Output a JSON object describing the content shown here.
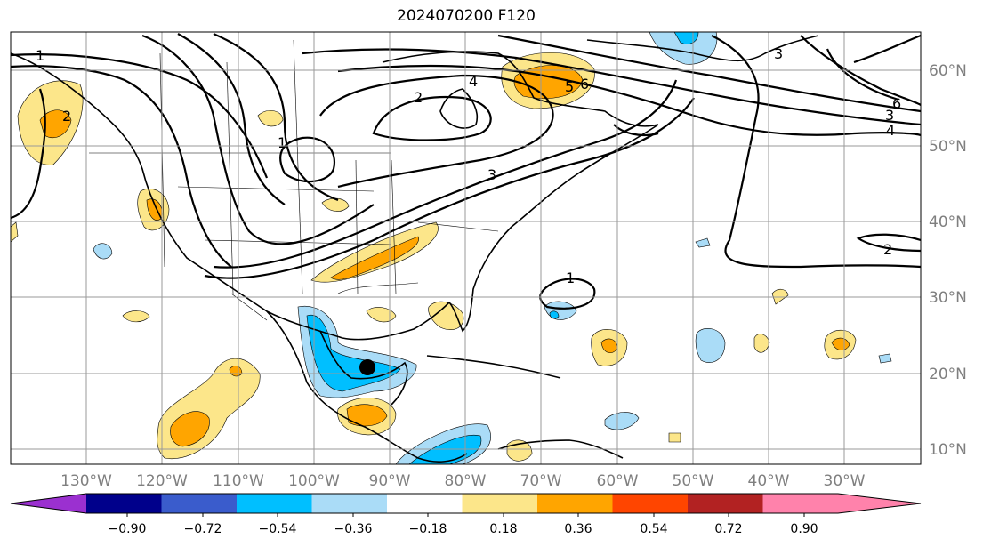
{
  "title": "2024070200 F120",
  "lon_ticks": [
    "130°W",
    "120°W",
    "110°W",
    "100°W",
    "90°W",
    "80°W",
    "70°W",
    "60°W",
    "50°W",
    "40°W",
    "30°W"
  ],
  "lat_ticks": [
    "60°N",
    "50°N",
    "40°N",
    "30°N",
    "20°N",
    "10°N"
  ],
  "colorbar": {
    "labels": [
      "−0.90",
      "−0.72",
      "−0.54",
      "−0.36",
      "−0.18",
      "0.18",
      "0.36",
      "0.54",
      "0.72",
      "0.90"
    ],
    "colors": [
      "#9b30d0",
      "#00008b",
      "#3a5ccc",
      "#00bfff",
      "#aadcf7",
      "#ffffff",
      "#fce68a",
      "#ffa500",
      "#ff4500",
      "#b22222",
      "#ff82ab"
    ]
  },
  "contour_labels": [
    "1",
    "2",
    "3",
    "4",
    "5",
    "6",
    "1",
    "2",
    "3",
    "4",
    "6",
    "3",
    "2",
    "1"
  ],
  "storm_marker": "storm-center"
}
